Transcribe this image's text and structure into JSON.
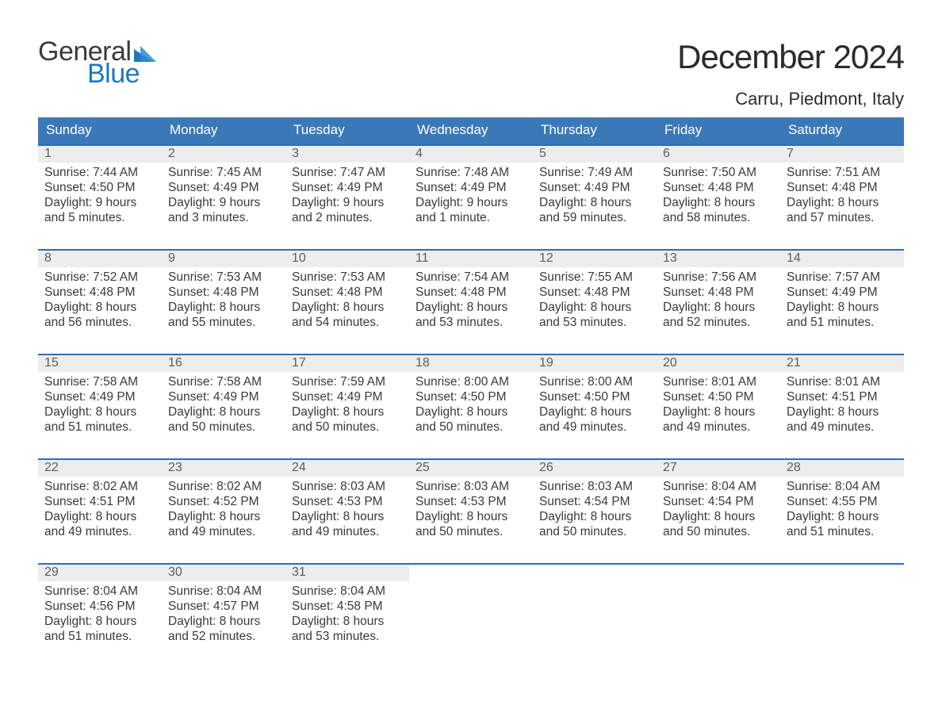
{
  "theme": {
    "header_blue": "#3b78b8",
    "accent_blue": "#2f6fb3",
    "daynum_bg": "#ededed",
    "text_main": "#333333",
    "text_header": "#ffffff",
    "background": "#ffffff",
    "title_fontsize_pt": 32,
    "location_fontsize_pt": 17,
    "dow_fontsize_pt": 13,
    "body_fontsize_pt": 11.5
  },
  "logo": {
    "word1": "General",
    "word2": "Blue"
  },
  "title": "December 2024",
  "location": "Carru, Piedmont, Italy",
  "days_of_week": [
    "Sunday",
    "Monday",
    "Tuesday",
    "Wednesday",
    "Thursday",
    "Friday",
    "Saturday"
  ],
  "layout": {
    "columns": 7,
    "first_weekday_index": 0,
    "trailing_empty": 4
  },
  "days": [
    {
      "n": 1,
      "sunrise": "7:44 AM",
      "sunset": "4:50 PM",
      "daylight": "9 hours and 5 minutes."
    },
    {
      "n": 2,
      "sunrise": "7:45 AM",
      "sunset": "4:49 PM",
      "daylight": "9 hours and 3 minutes."
    },
    {
      "n": 3,
      "sunrise": "7:47 AM",
      "sunset": "4:49 PM",
      "daylight": "9 hours and 2 minutes."
    },
    {
      "n": 4,
      "sunrise": "7:48 AM",
      "sunset": "4:49 PM",
      "daylight": "9 hours and 1 minute."
    },
    {
      "n": 5,
      "sunrise": "7:49 AM",
      "sunset": "4:49 PM",
      "daylight": "8 hours and 59 minutes."
    },
    {
      "n": 6,
      "sunrise": "7:50 AM",
      "sunset": "4:48 PM",
      "daylight": "8 hours and 58 minutes."
    },
    {
      "n": 7,
      "sunrise": "7:51 AM",
      "sunset": "4:48 PM",
      "daylight": "8 hours and 57 minutes."
    },
    {
      "n": 8,
      "sunrise": "7:52 AM",
      "sunset": "4:48 PM",
      "daylight": "8 hours and 56 minutes."
    },
    {
      "n": 9,
      "sunrise": "7:53 AM",
      "sunset": "4:48 PM",
      "daylight": "8 hours and 55 minutes."
    },
    {
      "n": 10,
      "sunrise": "7:53 AM",
      "sunset": "4:48 PM",
      "daylight": "8 hours and 54 minutes."
    },
    {
      "n": 11,
      "sunrise": "7:54 AM",
      "sunset": "4:48 PM",
      "daylight": "8 hours and 53 minutes."
    },
    {
      "n": 12,
      "sunrise": "7:55 AM",
      "sunset": "4:48 PM",
      "daylight": "8 hours and 53 minutes."
    },
    {
      "n": 13,
      "sunrise": "7:56 AM",
      "sunset": "4:48 PM",
      "daylight": "8 hours and 52 minutes."
    },
    {
      "n": 14,
      "sunrise": "7:57 AM",
      "sunset": "4:49 PM",
      "daylight": "8 hours and 51 minutes."
    },
    {
      "n": 15,
      "sunrise": "7:58 AM",
      "sunset": "4:49 PM",
      "daylight": "8 hours and 51 minutes."
    },
    {
      "n": 16,
      "sunrise": "7:58 AM",
      "sunset": "4:49 PM",
      "daylight": "8 hours and 50 minutes."
    },
    {
      "n": 17,
      "sunrise": "7:59 AM",
      "sunset": "4:49 PM",
      "daylight": "8 hours and 50 minutes."
    },
    {
      "n": 18,
      "sunrise": "8:00 AM",
      "sunset": "4:50 PM",
      "daylight": "8 hours and 50 minutes."
    },
    {
      "n": 19,
      "sunrise": "8:00 AM",
      "sunset": "4:50 PM",
      "daylight": "8 hours and 49 minutes."
    },
    {
      "n": 20,
      "sunrise": "8:01 AM",
      "sunset": "4:50 PM",
      "daylight": "8 hours and 49 minutes."
    },
    {
      "n": 21,
      "sunrise": "8:01 AM",
      "sunset": "4:51 PM",
      "daylight": "8 hours and 49 minutes."
    },
    {
      "n": 22,
      "sunrise": "8:02 AM",
      "sunset": "4:51 PM",
      "daylight": "8 hours and 49 minutes."
    },
    {
      "n": 23,
      "sunrise": "8:02 AM",
      "sunset": "4:52 PM",
      "daylight": "8 hours and 49 minutes."
    },
    {
      "n": 24,
      "sunrise": "8:03 AM",
      "sunset": "4:53 PM",
      "daylight": "8 hours and 49 minutes."
    },
    {
      "n": 25,
      "sunrise": "8:03 AM",
      "sunset": "4:53 PM",
      "daylight": "8 hours and 50 minutes."
    },
    {
      "n": 26,
      "sunrise": "8:03 AM",
      "sunset": "4:54 PM",
      "daylight": "8 hours and 50 minutes."
    },
    {
      "n": 27,
      "sunrise": "8:04 AM",
      "sunset": "4:54 PM",
      "daylight": "8 hours and 50 minutes."
    },
    {
      "n": 28,
      "sunrise": "8:04 AM",
      "sunset": "4:55 PM",
      "daylight": "8 hours and 51 minutes."
    },
    {
      "n": 29,
      "sunrise": "8:04 AM",
      "sunset": "4:56 PM",
      "daylight": "8 hours and 51 minutes."
    },
    {
      "n": 30,
      "sunrise": "8:04 AM",
      "sunset": "4:57 PM",
      "daylight": "8 hours and 52 minutes."
    },
    {
      "n": 31,
      "sunrise": "8:04 AM",
      "sunset": "4:58 PM",
      "daylight": "8 hours and 53 minutes."
    }
  ],
  "labels": {
    "sunrise": "Sunrise:",
    "sunset": "Sunset:",
    "daylight": "Daylight:"
  }
}
